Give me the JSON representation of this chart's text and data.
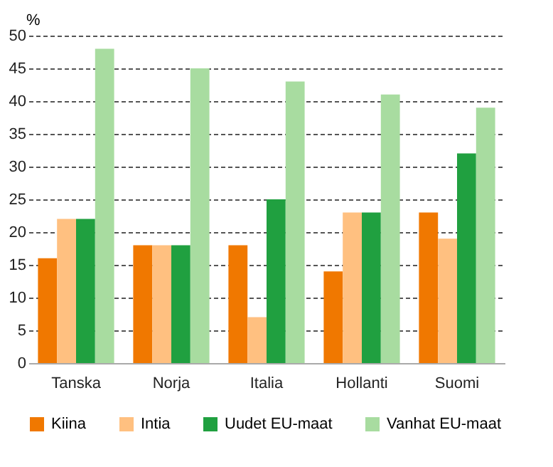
{
  "chart_data": {
    "type": "bar",
    "ylabel": "%",
    "categories": [
      "Tanska",
      "Norja",
      "Italia",
      "Hollanti",
      "Suomi"
    ],
    "series": [
      {
        "name": "Kiina",
        "color": "#f07800",
        "values": [
          16,
          18,
          18,
          14,
          23
        ]
      },
      {
        "name": "Intia",
        "color": "#ffc080",
        "values": [
          22,
          18,
          7,
          23,
          19
        ]
      },
      {
        "name": "Uudet EU-maat",
        "color": "#20a040",
        "values": [
          22,
          18,
          25,
          23,
          32
        ]
      },
      {
        "name": "Vanhat EU-maat",
        "color": "#a8dca0",
        "values": [
          48,
          45,
          43,
          41,
          39
        ]
      }
    ],
    "ylim": [
      0,
      50
    ],
    "yticks": [
      0,
      5,
      10,
      15,
      20,
      25,
      30,
      35,
      40,
      45,
      50
    ],
    "grid": "y",
    "legend": "bottom"
  }
}
